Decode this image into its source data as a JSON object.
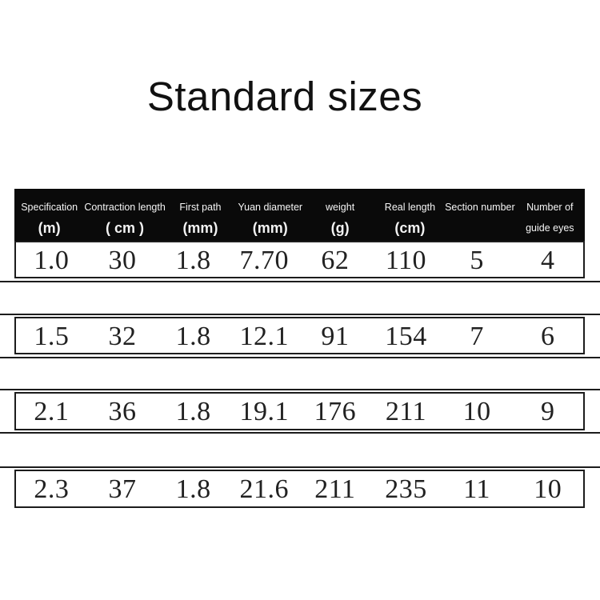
{
  "page": {
    "title": "Standard sizes"
  },
  "colors": {
    "header_bg": "#0a0a0a",
    "header_text": "#f5f5f5",
    "border": "#1c1c1c",
    "cell_text": "#212121",
    "background": "#ffffff"
  },
  "table": {
    "columns": [
      {
        "label": "Specification",
        "unit": "(m)"
      },
      {
        "label": "Contraction length",
        "unit": "( cm )"
      },
      {
        "label": "First path",
        "unit": "(mm)"
      },
      {
        "label": "Yuan diameter",
        "unit": "(mm)"
      },
      {
        "label": "weight",
        "unit": "(g)"
      },
      {
        "label": "Real length",
        "unit": "(cm)"
      },
      {
        "label": "Section number",
        "unit": ""
      },
      {
        "label": "Number of",
        "label2": "guide eyes"
      }
    ],
    "rows": [
      [
        "1.0",
        "30",
        "1.8",
        "7.70",
        "62",
        "110",
        "5",
        "4"
      ],
      [
        "1.5",
        "32",
        "1.8",
        "12.1",
        "91",
        "154",
        "7",
        "6"
      ],
      [
        "2.1",
        "36",
        "1.8",
        "19.1",
        "176",
        "211",
        "10",
        "9"
      ],
      [
        "2.3",
        "37",
        "1.8",
        "21.6",
        "211",
        "235",
        "11",
        "10"
      ]
    ]
  }
}
